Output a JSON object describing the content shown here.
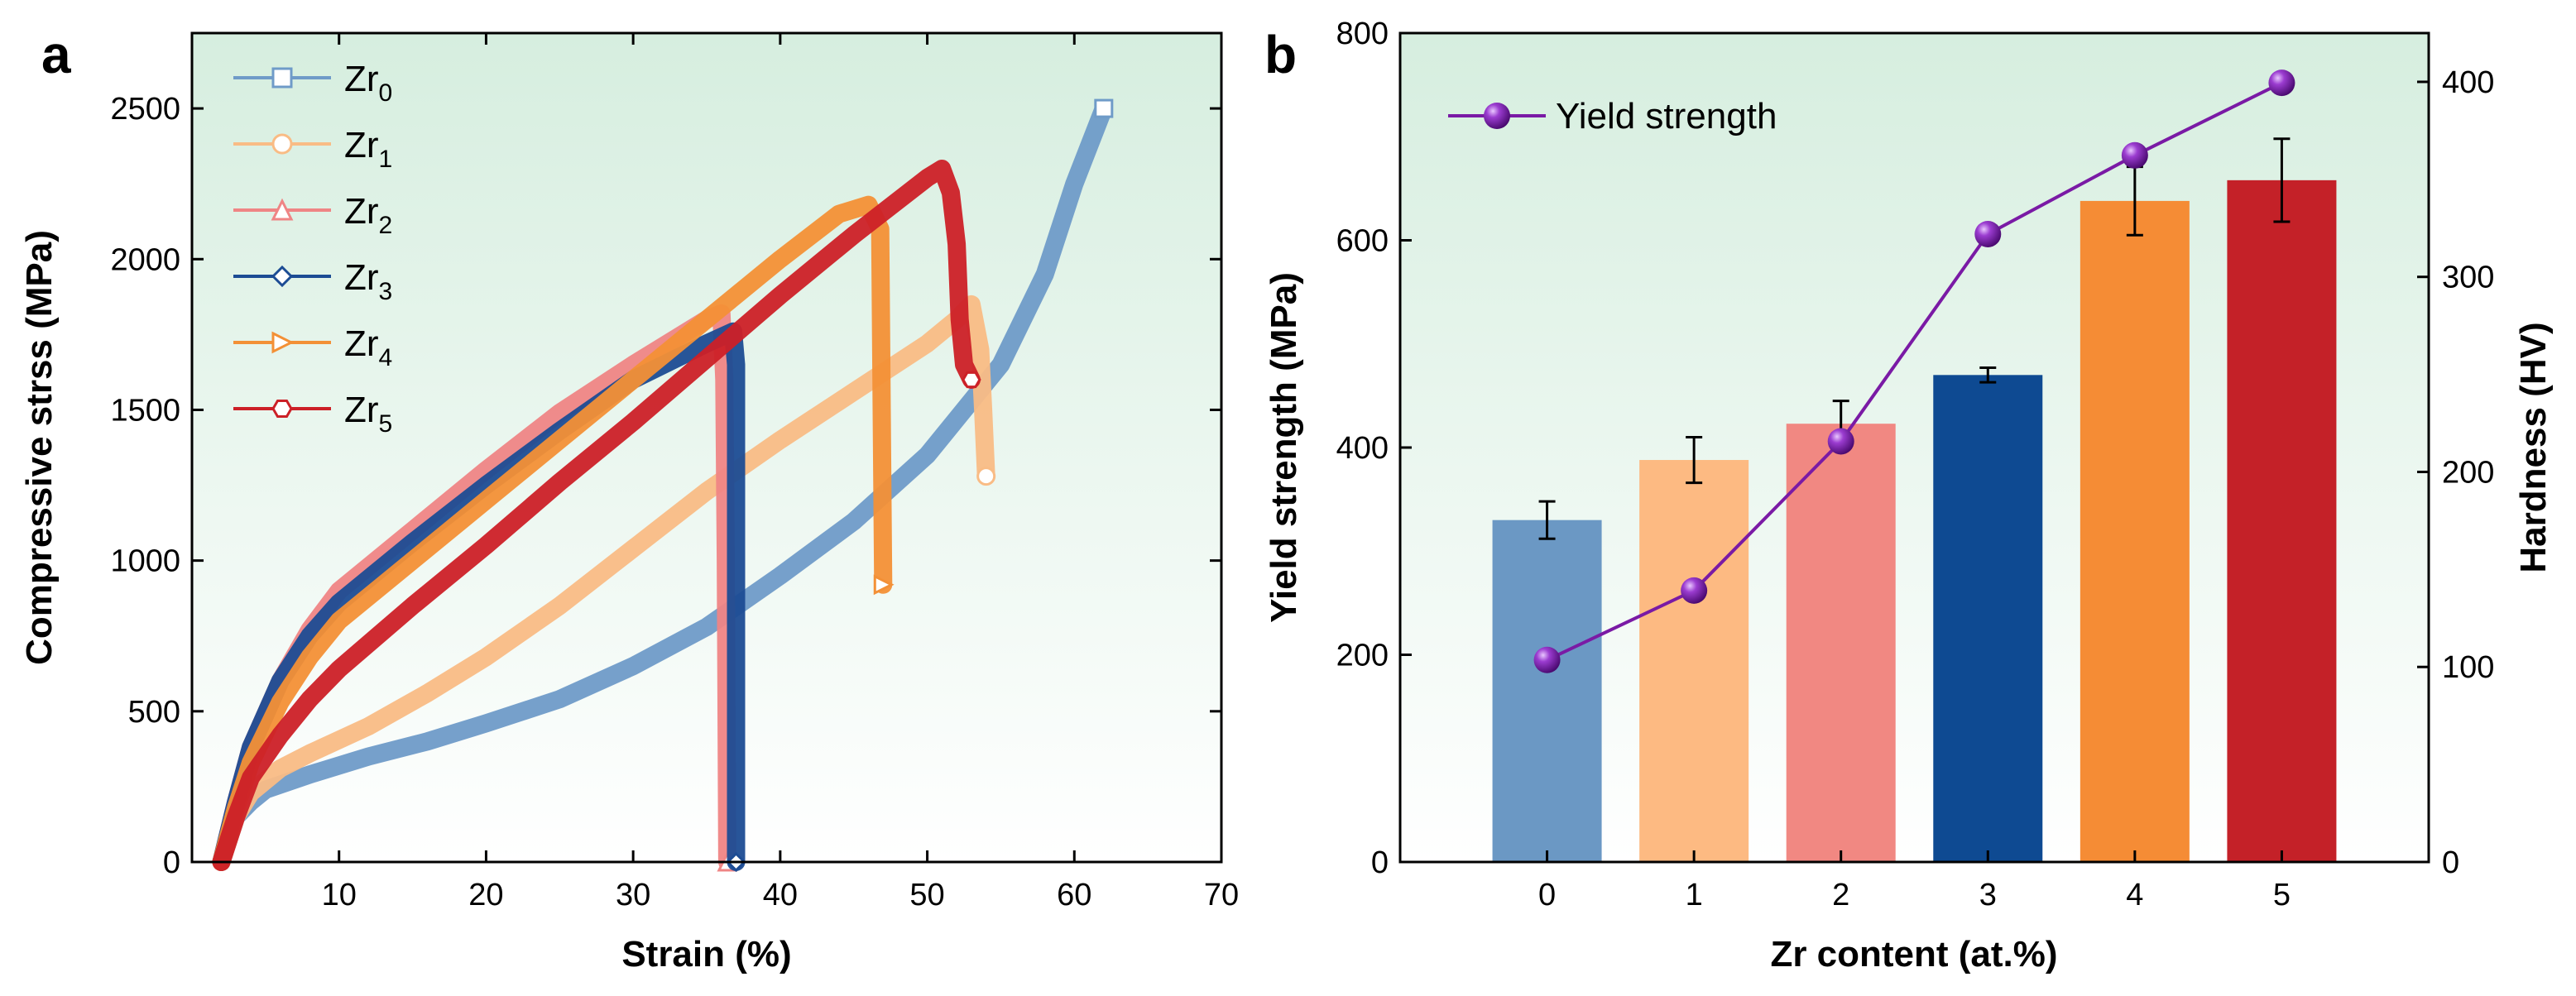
{
  "chart_data": [
    {
      "panel": "a",
      "type": "line",
      "xlabel": "Strain (%)",
      "ylabel": "Compressive strss (MPa)",
      "xlim": [
        0,
        70
      ],
      "ylim": [
        0,
        2750
      ],
      "xticks": [
        10,
        20,
        30,
        40,
        50,
        60,
        70
      ],
      "yticks": [
        0,
        500,
        1000,
        1500,
        2000,
        2500
      ],
      "legend_position": "top-left",
      "series": [
        {
          "name": "Zr",
          "sub": "0",
          "color": "#6f9bc8",
          "marker": "square",
          "points": [
            [
              2,
              0
            ],
            [
              3,
              150
            ],
            [
              4,
              200
            ],
            [
              5,
              240
            ],
            [
              8,
              290
            ],
            [
              12,
              350
            ],
            [
              16,
              400
            ],
            [
              20,
              460
            ],
            [
              25,
              540
            ],
            [
              30,
              650
            ],
            [
              35,
              780
            ],
            [
              40,
              950
            ],
            [
              45,
              1130
            ],
            [
              50,
              1350
            ],
            [
              55,
              1650
            ],
            [
              58,
              1950
            ],
            [
              60,
              2250
            ],
            [
              62,
              2500
            ]
          ]
        },
        {
          "name": "Zr",
          "sub": "1",
          "color": "#f9bc85",
          "marker": "circle",
          "points": [
            [
              2,
              0
            ],
            [
              3,
              150
            ],
            [
              4,
              230
            ],
            [
              6,
              310
            ],
            [
              8,
              360
            ],
            [
              12,
              450
            ],
            [
              16,
              560
            ],
            [
              20,
              680
            ],
            [
              25,
              850
            ],
            [
              30,
              1040
            ],
            [
              35,
              1230
            ],
            [
              40,
              1400
            ],
            [
              45,
              1560
            ],
            [
              50,
              1720
            ],
            [
              52,
              1800
            ],
            [
              53,
              1850
            ],
            [
              53.6,
              1700
            ],
            [
              53.8,
              1500
            ],
            [
              54,
              1280
            ]
          ]
        },
        {
          "name": "Zr",
          "sub": "2",
          "color": "#ef8585",
          "marker": "triangle",
          "points": [
            [
              2,
              0
            ],
            [
              3,
              200
            ],
            [
              4,
              380
            ],
            [
              6,
              600
            ],
            [
              8,
              770
            ],
            [
              10,
              900
            ],
            [
              15,
              1100
            ],
            [
              20,
              1300
            ],
            [
              25,
              1490
            ],
            [
              30,
              1650
            ],
            [
              35,
              1800
            ],
            [
              36,
              1820
            ],
            [
              36.2,
              1600
            ],
            [
              36.3,
              1000
            ],
            [
              36.4,
              0
            ]
          ]
        },
        {
          "name": "Zr",
          "sub": "3",
          "color": "#1c4c94",
          "marker": "diamond",
          "points": [
            [
              2,
              0
            ],
            [
              3,
              200
            ],
            [
              4,
              380
            ],
            [
              6,
              600
            ],
            [
              8,
              750
            ],
            [
              10,
              860
            ],
            [
              15,
              1060
            ],
            [
              20,
              1250
            ],
            [
              25,
              1430
            ],
            [
              30,
              1600
            ],
            [
              35,
              1720
            ],
            [
              36.8,
              1760
            ],
            [
              37,
              1650
            ],
            [
              37,
              900
            ],
            [
              37,
              0
            ]
          ]
        },
        {
          "name": "Zr",
          "sub": "4",
          "color": "#f39036",
          "marker": "tri-right",
          "points": [
            [
              2,
              0
            ],
            [
              3,
              180
            ],
            [
              4,
              330
            ],
            [
              6,
              530
            ],
            [
              8,
              680
            ],
            [
              10,
              800
            ],
            [
              15,
              1000
            ],
            [
              20,
              1200
            ],
            [
              25,
              1400
            ],
            [
              30,
              1600
            ],
            [
              35,
              1800
            ],
            [
              40,
              2000
            ],
            [
              44,
              2150
            ],
            [
              46,
              2180
            ],
            [
              46.8,
              2100
            ],
            [
              46.9,
              1500
            ],
            [
              47,
              920
            ]
          ]
        },
        {
          "name": "Zr",
          "sub": "5",
          "color": "#cc2027",
          "marker": "hexagon",
          "points": [
            [
              2,
              0
            ],
            [
              3,
              150
            ],
            [
              4,
              280
            ],
            [
              6,
              420
            ],
            [
              8,
              540
            ],
            [
              10,
              640
            ],
            [
              15,
              850
            ],
            [
              20,
              1050
            ],
            [
              25,
              1260
            ],
            [
              30,
              1460
            ],
            [
              35,
              1670
            ],
            [
              40,
              1880
            ],
            [
              45,
              2080
            ],
            [
              50,
              2270
            ],
            [
              51,
              2300
            ],
            [
              51.6,
              2220
            ],
            [
              52,
              2050
            ],
            [
              52.2,
              1800
            ],
            [
              52.5,
              1650
            ],
            [
              53,
              1600
            ]
          ]
        }
      ]
    },
    {
      "panel": "b",
      "type": "bar",
      "xlabel": "Zr content (at.%)",
      "ylabel": "Yield strength (MPa)",
      "y2label": "Hardness (HV)",
      "categories": [
        "0",
        "1",
        "2",
        "3",
        "4",
        "5"
      ],
      "ylim": [
        0,
        800
      ],
      "yticks": [
        0,
        200,
        400,
        600,
        800
      ],
      "y2lim": [
        0,
        425
      ],
      "y2ticks": [
        0,
        100,
        200,
        300,
        400
      ],
      "bars": {
        "values": [
          330,
          388,
          423,
          470,
          638,
          658
        ],
        "errors": [
          18,
          22,
          22,
          7,
          33,
          40
        ],
        "colors": [
          "#6b98c4",
          "#fdba82",
          "#f18882",
          "#0e4a92",
          "#f58c35",
          "#c42128"
        ]
      },
      "line": {
        "name": "Yield strength",
        "values": [
          195,
          262,
          406,
          606,
          682,
          752
        ],
        "color": "#7a1aa5"
      },
      "legend_position": "top-left"
    }
  ],
  "labels": {
    "panel_a": "a",
    "panel_b": "b",
    "legend_b": "Yield strength"
  }
}
